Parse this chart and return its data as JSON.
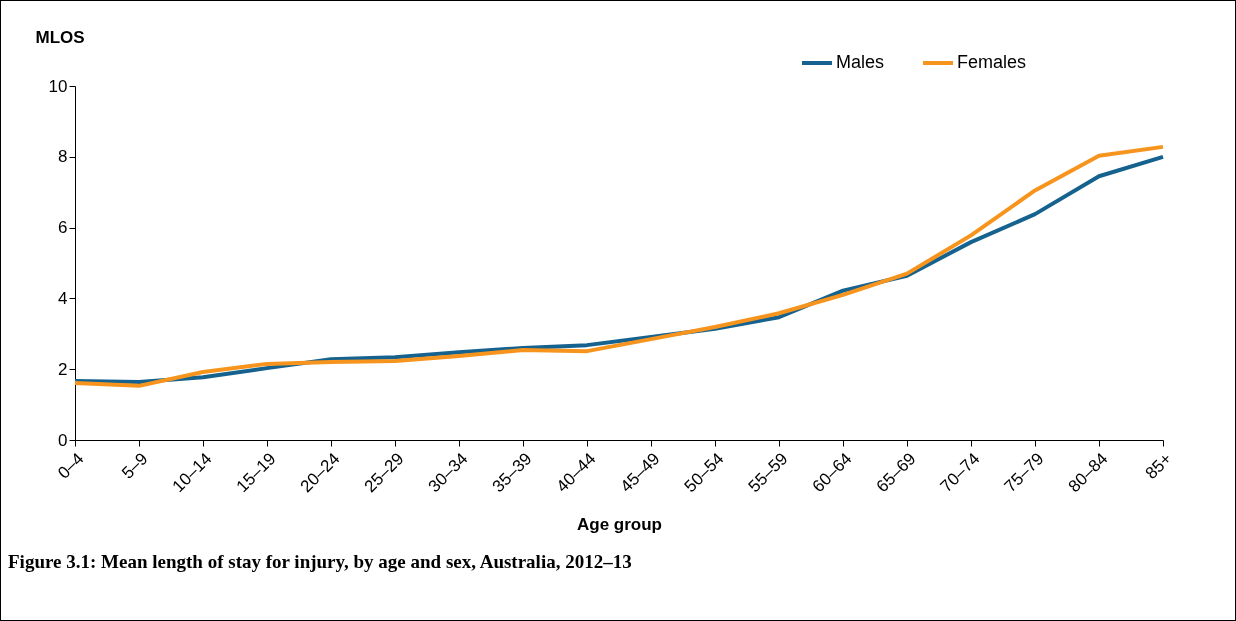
{
  "chart_data": {
    "type": "line",
    "title": "Figure 3.1: Mean length of stay for injury, by age and sex, Australia, 2012–13",
    "xlabel": "Age group",
    "ylabel": "MLOS",
    "categories": [
      "0–4",
      "5–9",
      "10–14",
      "15–19",
      "20–24",
      "25–29",
      "30–34",
      "35–39",
      "40–44",
      "45–49",
      "50–54",
      "55–59",
      "60–64",
      "65–69",
      "70–74",
      "75–79",
      "80–84",
      "85+"
    ],
    "series": [
      {
        "name": "Males",
        "color": "#15628f",
        "values": [
          1.67,
          1.64,
          1.77,
          2.03,
          2.28,
          2.34,
          2.48,
          2.6,
          2.68,
          2.91,
          3.14,
          3.47,
          4.22,
          4.64,
          5.59,
          6.38,
          7.45,
          8.0
        ]
      },
      {
        "name": "Females",
        "color": "#f7941d",
        "values": [
          1.61,
          1.53,
          1.92,
          2.15,
          2.2,
          2.23,
          2.37,
          2.54,
          2.51,
          2.85,
          3.19,
          3.58,
          4.1,
          4.7,
          5.78,
          7.05,
          8.03,
          8.28
        ]
      }
    ],
    "ylim": [
      0,
      10
    ],
    "yticks": [
      0,
      2,
      4,
      6,
      8,
      10
    ],
    "grid": false,
    "legend": "top right",
    "marker": "none",
    "line_style": "solid"
  }
}
